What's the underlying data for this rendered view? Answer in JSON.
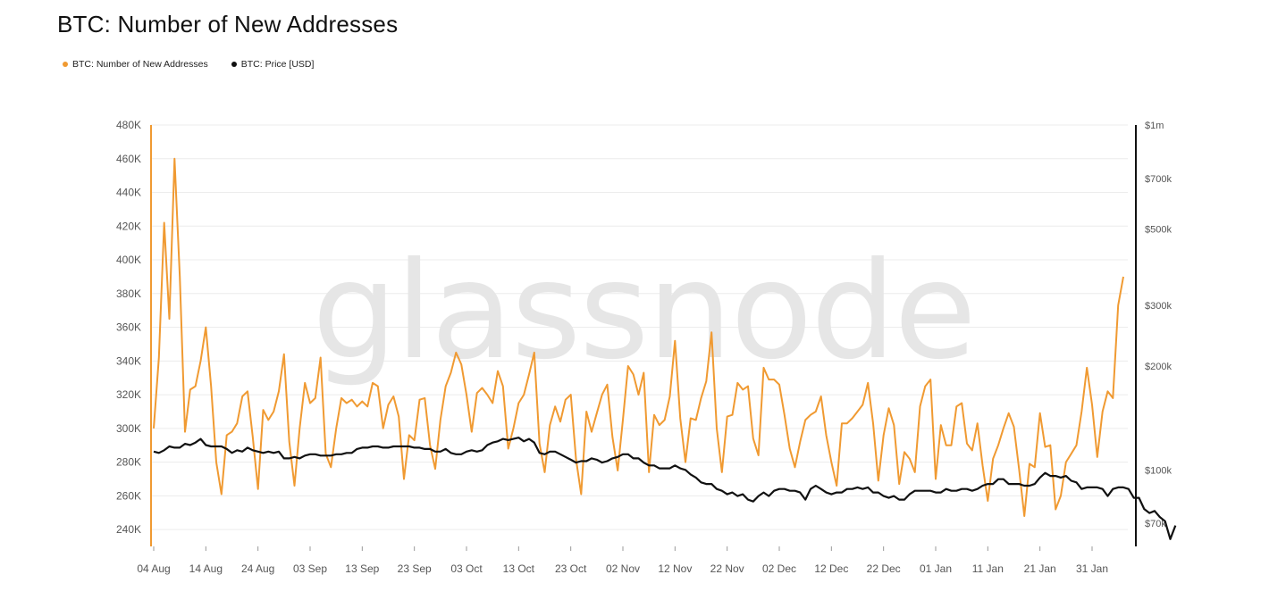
{
  "chart_data": {
    "type": "line",
    "title": "BTC: Number of New Addresses",
    "watermark": "glassnode",
    "legend_position": "top-left",
    "grid": "horizontal",
    "x_ticks": [
      "04 Aug",
      "14 Aug",
      "24 Aug",
      "03 Sep",
      "13 Sep",
      "23 Sep",
      "03 Oct",
      "13 Oct",
      "23 Oct",
      "02 Nov",
      "12 Nov",
      "22 Nov",
      "02 Dec",
      "12 Dec",
      "22 Dec",
      "01 Jan",
      "11 Jan",
      "21 Jan",
      "31 Jan"
    ],
    "y_left": {
      "ticks": [
        "240K",
        "260K",
        "280K",
        "300K",
        "320K",
        "340K",
        "360K",
        "380K",
        "400K",
        "420K",
        "440K",
        "460K",
        "480K"
      ],
      "min": 230000,
      "max": 480000
    },
    "y_right": {
      "scale": "log",
      "ticks": [
        {
          "label": "$1m",
          "value": 1000000
        },
        {
          "label": "$700k",
          "value": 700000
        },
        {
          "label": "$500k",
          "value": 500000
        },
        {
          "label": "$300k",
          "value": 300000
        },
        {
          "label": "$200k",
          "value": 200000
        },
        {
          "label": "$100k",
          "value": 100000
        },
        {
          "label": "$70k",
          "value": 70000
        }
      ],
      "min": 60000,
      "max": 1000000
    },
    "series": [
      {
        "name": "BTC: Number of New Addresses",
        "axis": "left",
        "color": "#f09a32",
        "values": [
          300000,
          342000,
          422000,
          365000,
          460000,
          390000,
          298000,
          323000,
          325000,
          340000,
          360000,
          325000,
          280000,
          261000,
          296000,
          298000,
          303000,
          319000,
          322000,
          295000,
          264000,
          311000,
          305000,
          310000,
          322000,
          344000,
          292000,
          266000,
          300000,
          327000,
          315000,
          318000,
          342000,
          285000,
          277000,
          300000,
          318000,
          315000,
          317000,
          313000,
          316000,
          313000,
          327000,
          325000,
          300000,
          314000,
          319000,
          307000,
          270000,
          296000,
          293000,
          317000,
          318000,
          290000,
          276000,
          305000,
          325000,
          333000,
          345000,
          338000,
          320000,
          298000,
          321000,
          324000,
          320000,
          315000,
          334000,
          325000,
          288000,
          300000,
          315000,
          320000,
          332000,
          345000,
          291000,
          274000,
          302000,
          313000,
          304000,
          317000,
          320000,
          282000,
          261000,
          310000,
          298000,
          309000,
          320000,
          326000,
          295000,
          275000,
          305000,
          337000,
          332000,
          320000,
          333000,
          274000,
          308000,
          302000,
          305000,
          319000,
          352000,
          306000,
          280000,
          306000,
          305000,
          318000,
          328000,
          357000,
          300000,
          274000,
          307000,
          308000,
          327000,
          323000,
          325000,
          294000,
          284000,
          336000,
          329000,
          329000,
          326000,
          308000,
          288000,
          277000,
          292000,
          305000,
          308000,
          310000,
          319000,
          296000,
          280000,
          266000,
          303000,
          303000,
          306000,
          310000,
          314000,
          327000,
          303000,
          269000,
          296000,
          312000,
          302000,
          267000,
          286000,
          282000,
          274000,
          313000,
          325000,
          329000,
          270000,
          302000,
          290000,
          290000,
          313000,
          315000,
          291000,
          287000,
          303000,
          278000,
          257000,
          282000,
          290000,
          300000,
          309000,
          301000,
          276000,
          248000,
          279000,
          277000,
          309000,
          289000,
          290000,
          252000,
          260000,
          280000,
          285000,
          290000,
          310000,
          336000,
          314000,
          283000,
          310000,
          322000,
          318000,
          373000,
          390000
        ]
      },
      {
        "name": "BTC: Price [USD]",
        "axis": "right",
        "color": "#111111",
        "values": [
          113000,
          112000,
          114000,
          117000,
          116000,
          116000,
          119000,
          118000,
          120000,
          123000,
          118000,
          117000,
          117000,
          117000,
          115000,
          112000,
          114000,
          113000,
          116000,
          114000,
          113000,
          112000,
          113000,
          112000,
          113000,
          108000,
          108000,
          109000,
          108000,
          110000,
          111000,
          111000,
          110000,
          110000,
          110000,
          111000,
          111000,
          112000,
          112000,
          115000,
          116000,
          116000,
          117000,
          117000,
          116000,
          116000,
          117000,
          117000,
          117000,
          117000,
          116000,
          116000,
          115000,
          115000,
          113000,
          113000,
          115000,
          112000,
          111000,
          111000,
          113000,
          114000,
          113000,
          114000,
          118000,
          120000,
          121000,
          123000,
          122000,
          123000,
          124000,
          121000,
          123000,
          120000,
          112000,
          111000,
          113000,
          113000,
          111000,
          109000,
          107000,
          105000,
          106000,
          106000,
          108000,
          107000,
          105000,
          106000,
          108000,
          109000,
          111000,
          111000,
          108000,
          108000,
          105000,
          103000,
          103000,
          101000,
          101000,
          101000,
          103000,
          101000,
          100000,
          97000,
          95000,
          92000,
          91000,
          91000,
          88000,
          87000,
          85000,
          86000,
          84000,
          85000,
          82000,
          81000,
          84000,
          86000,
          84000,
          87000,
          88000,
          88000,
          87000,
          87000,
          86000,
          82000,
          88000,
          90000,
          88000,
          86000,
          85000,
          86000,
          86000,
          88000,
          88000,
          89000,
          88000,
          89000,
          86000,
          86000,
          84000,
          83000,
          84000,
          82000,
          82000,
          85000,
          87000,
          87000,
          87000,
          87000,
          86000,
          86000,
          88000,
          87000,
          87000,
          88000,
          88000,
          87000,
          88000,
          90000,
          91000,
          91000,
          94000,
          94000,
          91000,
          91000,
          91000,
          90000,
          90000,
          91000,
          95000,
          98000,
          96000,
          96000,
          95000,
          96000,
          93000,
          92000,
          88000,
          89000,
          89000,
          89000,
          88000,
          84000,
          88000,
          89000,
          89000,
          88000,
          83000,
          83000,
          77000,
          75000,
          76000,
          73000,
          71000,
          63000,
          69000
        ]
      }
    ]
  }
}
